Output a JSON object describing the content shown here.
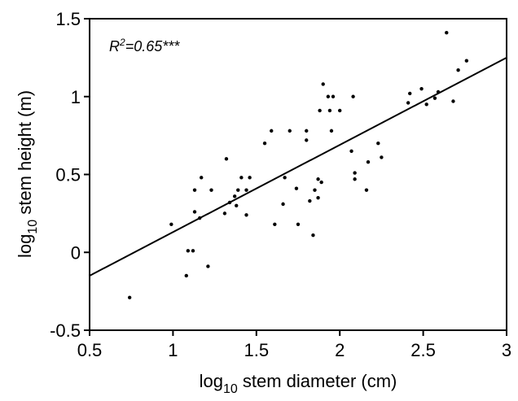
{
  "chart_data": {
    "type": "scatter",
    "x_label": {
      "pre": "log",
      "sub": "10",
      "post": " stem diameter (cm)"
    },
    "y_label": {
      "pre": "log",
      "sub": "10",
      "post": " stem height (m)"
    },
    "annotation": {
      "pre": "R",
      "sup": "2",
      "post": "=0.65***"
    },
    "xlim": [
      0.5,
      3
    ],
    "ylim": [
      -0.5,
      1.5
    ],
    "x_ticks": [
      0.5,
      1,
      1.5,
      2,
      2.5,
      3
    ],
    "x_tick_labels": [
      "0.5",
      "1",
      "1.5",
      "2",
      "2.5",
      "3"
    ],
    "y_ticks": [
      -0.5,
      0,
      0.5,
      1,
      1.5
    ],
    "y_tick_labels": [
      "-0.5",
      "0",
      "0.5",
      "1",
      "1.5"
    ],
    "grid": false,
    "points": [
      [
        0.74,
        -0.29
      ],
      [
        0.99,
        0.18
      ],
      [
        1.08,
        -0.15
      ],
      [
        1.09,
        0.01
      ],
      [
        1.12,
        0.01
      ],
      [
        1.13,
        0.26
      ],
      [
        1.13,
        0.4
      ],
      [
        1.16,
        0.22
      ],
      [
        1.17,
        0.48
      ],
      [
        1.21,
        -0.09
      ],
      [
        1.23,
        0.4
      ],
      [
        1.31,
        0.25
      ],
      [
        1.32,
        0.6
      ],
      [
        1.34,
        0.32
      ],
      [
        1.37,
        0.36
      ],
      [
        1.38,
        0.3
      ],
      [
        1.39,
        0.4
      ],
      [
        1.41,
        0.48
      ],
      [
        1.44,
        0.24
      ],
      [
        1.44,
        0.4
      ],
      [
        1.46,
        0.48
      ],
      [
        1.55,
        0.7
      ],
      [
        1.59,
        0.78
      ],
      [
        1.61,
        0.18
      ],
      [
        1.66,
        0.31
      ],
      [
        1.67,
        0.48
      ],
      [
        1.7,
        0.78
      ],
      [
        1.74,
        0.41
      ],
      [
        1.75,
        0.18
      ],
      [
        1.8,
        0.72
      ],
      [
        1.8,
        0.78
      ],
      [
        1.82,
        0.33
      ],
      [
        1.84,
        0.11
      ],
      [
        1.85,
        0.4
      ],
      [
        1.87,
        0.35
      ],
      [
        1.87,
        0.47
      ],
      [
        1.88,
        0.91
      ],
      [
        1.89,
        0.45
      ],
      [
        1.9,
        1.08
      ],
      [
        1.93,
        1.0
      ],
      [
        1.94,
        0.91
      ],
      [
        1.95,
        0.78
      ],
      [
        1.96,
        1.0
      ],
      [
        2.0,
        0.91
      ],
      [
        2.07,
        0.65
      ],
      [
        2.08,
        1.0
      ],
      [
        2.09,
        0.51
      ],
      [
        2.09,
        0.47
      ],
      [
        2.16,
        0.4
      ],
      [
        2.17,
        0.58
      ],
      [
        2.23,
        0.7
      ],
      [
        2.25,
        0.61
      ],
      [
        2.41,
        0.96
      ],
      [
        2.42,
        1.02
      ],
      [
        2.49,
        1.05
      ],
      [
        2.52,
        0.95
      ],
      [
        2.57,
        0.99
      ],
      [
        2.59,
        1.03
      ],
      [
        2.64,
        1.41
      ],
      [
        2.68,
        0.97
      ],
      [
        2.71,
        1.17
      ],
      [
        2.76,
        1.23
      ]
    ],
    "regression_line": {
      "x": [
        0.5,
        3
      ],
      "y": [
        -0.15,
        1.25
      ]
    }
  }
}
